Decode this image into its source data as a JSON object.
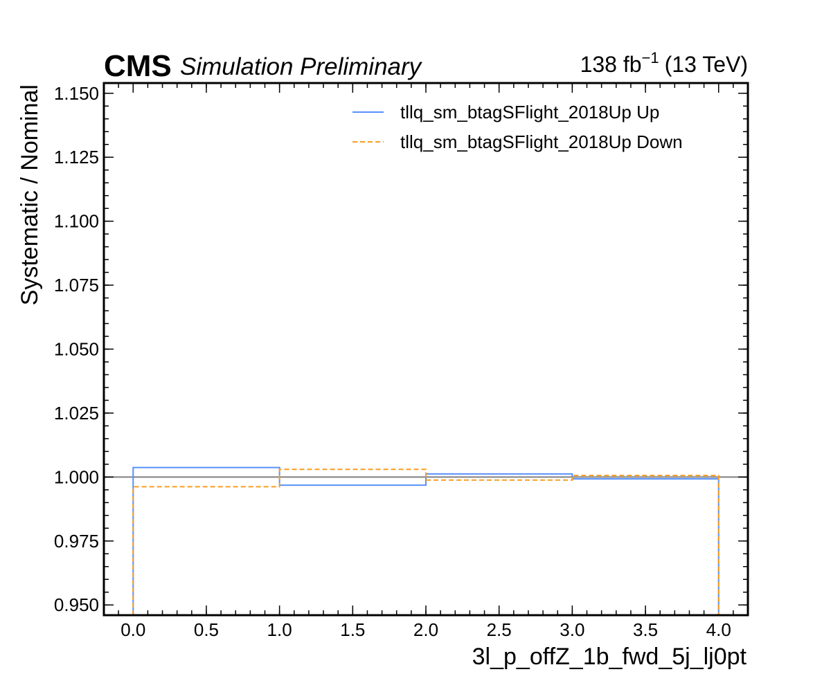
{
  "header": {
    "experiment": "CMS",
    "status": "Simulation Preliminary",
    "lumi_value": "138 fb",
    "lumi_exponent": "−1",
    "energy": "(13 TeV)"
  },
  "chart_data": {
    "type": "line",
    "drawstyle": "steps",
    "xlabel": "3l_p_offZ_1b_fwd_5j_lj0pt",
    "ylabel": "Systematic / Nominal",
    "xlim": [
      -0.2,
      4.2
    ],
    "ylim": [
      0.946,
      1.154
    ],
    "x_ticks": [
      0.0,
      0.5,
      1.0,
      1.5,
      2.0,
      2.5,
      3.0,
      3.5,
      4.0
    ],
    "x_tick_labels": [
      "0.0",
      "0.5",
      "1.0",
      "1.5",
      "2.0",
      "2.5",
      "3.0",
      "3.5",
      "4.0"
    ],
    "y_ticks": [
      0.95,
      0.975,
      1.0,
      1.025,
      1.05,
      1.075,
      1.1,
      1.125,
      1.15
    ],
    "y_tick_labels": [
      "0.950",
      "0.975",
      "1.000",
      "1.025",
      "1.050",
      "1.075",
      "1.100",
      "1.125",
      "1.150"
    ],
    "reference_line": 1.0,
    "bin_edges": [
      0,
      1,
      2,
      3,
      4
    ],
    "series": [
      {
        "name": "tllq_sm_btagSFlight_2018Up Up",
        "values": [
          1.0037,
          0.9968,
          1.0012,
          0.9993
        ],
        "color": "#5790fc",
        "style": "solid"
      },
      {
        "name": "tllq_sm_btagSFlight_2018Up Down",
        "values": [
          0.9962,
          1.003,
          0.9988,
          1.0006
        ],
        "color": "#f89c20",
        "style": "dashed"
      }
    ],
    "legend_placement": "top-right",
    "grid": false
  }
}
